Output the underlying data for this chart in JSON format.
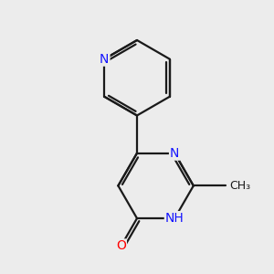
{
  "bg_color": "#ececec",
  "bond_color": "#1a1a1a",
  "n_color": "#1414ff",
  "o_color": "#ff0000",
  "nh_color": "#1414ff",
  "lw": 1.6,
  "figsize": [
    3.0,
    3.0
  ],
  "dpi": 100,
  "xlim": [
    0,
    10
  ],
  "ylim": [
    0,
    10
  ]
}
